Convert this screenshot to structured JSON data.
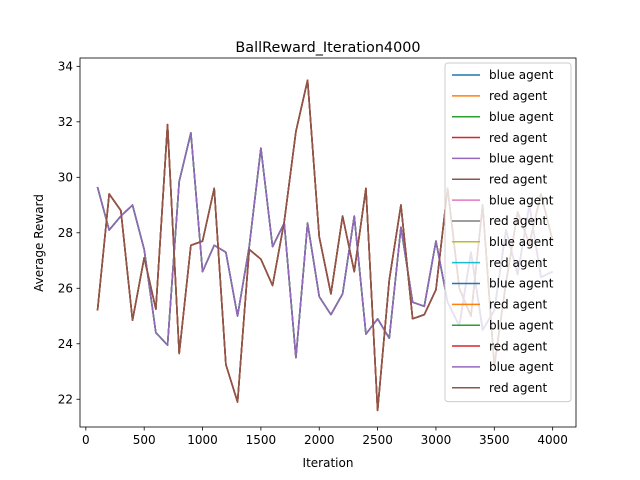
{
  "chart_data": {
    "type": "line",
    "title": "BallReward_Iteration4000",
    "xlabel": "Iteration",
    "ylabel": "Average Reward",
    "xlim": [
      -50,
      4200
    ],
    "ylim": [
      21,
      34.3
    ],
    "xticks": [
      0,
      500,
      1000,
      1500,
      2000,
      2500,
      3000,
      3500,
      4000
    ],
    "yticks": [
      22,
      24,
      26,
      28,
      30,
      32,
      34
    ],
    "grid": false,
    "legend_position": "upper-right",
    "x": [
      100,
      200,
      300,
      400,
      500,
      600,
      700,
      800,
      900,
      1000,
      1100,
      1200,
      1300,
      1400,
      1500,
      1600,
      1700,
      1800,
      1900,
      2000,
      2100,
      2200,
      2300,
      2400,
      2500,
      2600,
      2700,
      2800,
      2900,
      3000,
      3100,
      3200,
      3300,
      3400,
      3500,
      3600,
      3700,
      3800,
      3900,
      4000
    ],
    "series": [
      {
        "name": "blue agent",
        "color": "#1f77b4",
        "values": [
          29.65,
          28.1,
          28.6,
          29.0,
          27.4,
          24.4,
          23.95,
          29.85,
          31.6,
          26.6,
          27.55,
          27.3,
          25.0,
          27.5,
          31.05,
          27.5,
          28.35,
          23.5,
          28.35,
          25.7,
          25.05,
          25.8,
          28.6,
          24.35,
          24.9,
          24.2,
          28.2,
          25.5,
          25.35,
          27.7,
          25.5,
          24.65,
          27.3,
          24.5,
          25.2,
          28.1,
          26.5,
          29.0,
          26.4,
          26.6
        ]
      },
      {
        "name": "red agent",
        "color": "#ff7f0e",
        "values": [
          25.2,
          29.4,
          28.8,
          24.85,
          27.1,
          25.25,
          31.9,
          23.65,
          27.55,
          27.7,
          29.6,
          23.25,
          21.9,
          27.4,
          27.05,
          26.1,
          28.4,
          31.65,
          33.5,
          27.85,
          25.8,
          28.6,
          26.6,
          29.6,
          21.6,
          26.3,
          29.0,
          24.9,
          25.05,
          25.95,
          29.6,
          26.0,
          25.0,
          29.0,
          23.2,
          26.2,
          28.75,
          27.6,
          29.4,
          27.7
        ]
      },
      {
        "name": "blue agent",
        "color": "#2ca02c",
        "values": [
          29.65,
          28.1,
          28.6,
          29.0,
          27.4,
          24.4,
          23.95,
          29.85,
          31.6,
          26.6,
          27.55,
          27.3,
          25.0,
          27.5,
          31.05,
          27.5,
          28.35,
          23.5,
          28.35,
          25.7,
          25.05,
          25.8,
          28.6,
          24.35,
          24.9,
          24.2,
          28.2,
          25.5,
          25.35,
          27.7,
          25.5,
          24.65,
          27.3,
          24.5,
          25.2,
          28.1,
          26.5,
          29.0,
          26.4,
          26.6
        ]
      },
      {
        "name": "red agent",
        "color": "#d62728",
        "values": [
          25.2,
          29.4,
          28.8,
          24.85,
          27.1,
          25.25,
          31.9,
          23.65,
          27.55,
          27.7,
          29.6,
          23.25,
          21.9,
          27.4,
          27.05,
          26.1,
          28.4,
          31.65,
          33.5,
          27.85,
          25.8,
          28.6,
          26.6,
          29.6,
          21.6,
          26.3,
          29.0,
          24.9,
          25.05,
          25.95,
          29.6,
          26.0,
          25.0,
          29.0,
          23.2,
          26.2,
          28.75,
          27.6,
          29.4,
          27.7
        ]
      },
      {
        "name": "blue agent",
        "color": "#9467bd",
        "values": [
          29.65,
          28.1,
          28.6,
          29.0,
          27.4,
          24.4,
          23.95,
          29.85,
          31.6,
          26.6,
          27.55,
          27.3,
          25.0,
          27.5,
          31.05,
          27.5,
          28.35,
          23.5,
          28.35,
          25.7,
          25.05,
          25.8,
          28.6,
          24.35,
          24.9,
          24.2,
          28.2,
          25.5,
          25.35,
          27.7,
          25.5,
          24.65,
          27.3,
          24.5,
          25.2,
          28.1,
          26.5,
          29.0,
          26.4,
          26.6
        ]
      },
      {
        "name": "red agent",
        "color": "#8c564b",
        "values": [
          25.2,
          29.4,
          28.8,
          24.85,
          27.1,
          25.25,
          31.9,
          23.65,
          27.55,
          27.7,
          29.6,
          23.25,
          21.9,
          27.4,
          27.05,
          26.1,
          28.4,
          31.65,
          33.5,
          27.85,
          25.8,
          28.6,
          26.6,
          29.6,
          21.6,
          26.3,
          29.0,
          24.9,
          25.05,
          25.95,
          29.6,
          26.0,
          25.0,
          29.0,
          23.2,
          26.2,
          28.75,
          27.6,
          29.4,
          27.7
        ]
      },
      {
        "name": "blue agent",
        "color": "#e377c2",
        "values": [
          29.65,
          28.1,
          28.6,
          29.0,
          27.4,
          24.4,
          23.95,
          29.85,
          31.6,
          26.6,
          27.55,
          27.3,
          25.0,
          27.5,
          31.05,
          27.5,
          28.35,
          23.5,
          28.35,
          25.7,
          25.05,
          25.8,
          28.6,
          24.35,
          24.9,
          24.2,
          28.2,
          25.5,
          25.35,
          27.7,
          25.5,
          24.65,
          27.3,
          24.5,
          25.2,
          28.1,
          26.5,
          29.0,
          26.4,
          26.6
        ]
      },
      {
        "name": "red agent",
        "color": "#7f7f7f",
        "values": [
          25.2,
          29.4,
          28.8,
          24.85,
          27.1,
          25.25,
          31.9,
          23.65,
          27.55,
          27.7,
          29.6,
          23.25,
          21.9,
          27.4,
          27.05,
          26.1,
          28.4,
          31.65,
          33.5,
          27.85,
          25.8,
          28.6,
          26.6,
          29.6,
          21.6,
          26.3,
          29.0,
          24.9,
          25.05,
          25.95,
          29.6,
          26.0,
          25.0,
          29.0,
          23.2,
          26.2,
          28.75,
          27.6,
          29.4,
          27.7
        ]
      },
      {
        "name": "blue agent",
        "color": "#bcbd22",
        "values": [
          29.65,
          28.1,
          28.6,
          29.0,
          27.4,
          24.4,
          23.95,
          29.85,
          31.6,
          26.6,
          27.55,
          27.3,
          25.0,
          27.5,
          31.05,
          27.5,
          28.35,
          23.5,
          28.35,
          25.7,
          25.05,
          25.8,
          28.6,
          24.35,
          24.9,
          24.2,
          28.2,
          25.5,
          25.35,
          27.7,
          25.5,
          24.65,
          27.3,
          24.5,
          25.2,
          28.1,
          26.5,
          29.0,
          26.4,
          26.6
        ]
      },
      {
        "name": "red agent",
        "color": "#17becf",
        "values": [
          25.2,
          29.4,
          28.8,
          24.85,
          27.1,
          25.25,
          31.9,
          23.65,
          27.55,
          27.7,
          29.6,
          23.25,
          21.9,
          27.4,
          27.05,
          26.1,
          28.4,
          31.65,
          33.5,
          27.85,
          25.8,
          28.6,
          26.6,
          29.6,
          21.6,
          26.3,
          29.0,
          24.9,
          25.05,
          25.95,
          29.6,
          26.0,
          25.0,
          29.0,
          23.2,
          26.2,
          28.75,
          27.6,
          29.4,
          27.7
        ]
      },
      {
        "name": "blue agent",
        "color": "#1f77b4",
        "values": [
          29.65,
          28.1,
          28.6,
          29.0,
          27.4,
          24.4,
          23.95,
          29.85,
          31.6,
          26.6,
          27.55,
          27.3,
          25.0,
          27.5,
          31.05,
          27.5,
          28.35,
          23.5,
          28.35,
          25.7,
          25.05,
          25.8,
          28.6,
          24.35,
          24.9,
          24.2,
          28.2,
          25.5,
          25.35,
          27.7,
          25.5,
          24.65,
          27.3,
          24.5,
          25.2,
          28.1,
          26.5,
          29.0,
          26.4,
          26.6
        ]
      },
      {
        "name": "red agent",
        "color": "#ff7f0e",
        "values": [
          25.2,
          29.4,
          28.8,
          24.85,
          27.1,
          25.25,
          31.9,
          23.65,
          27.55,
          27.7,
          29.6,
          23.25,
          21.9,
          27.4,
          27.05,
          26.1,
          28.4,
          31.65,
          33.5,
          27.85,
          25.8,
          28.6,
          26.6,
          29.6,
          21.6,
          26.3,
          29.0,
          24.9,
          25.05,
          25.95,
          29.6,
          26.0,
          25.0,
          29.0,
          23.2,
          26.2,
          28.75,
          27.6,
          29.4,
          27.7
        ]
      },
      {
        "name": "blue agent",
        "color": "#2ca02c",
        "values": [
          29.65,
          28.1,
          28.6,
          29.0,
          27.4,
          24.4,
          23.95,
          29.85,
          31.6,
          26.6,
          27.55,
          27.3,
          25.0,
          27.5,
          31.05,
          27.5,
          28.35,
          23.5,
          28.35,
          25.7,
          25.05,
          25.8,
          28.6,
          24.35,
          24.9,
          24.2,
          28.2,
          25.5,
          25.35,
          27.7,
          25.5,
          24.65,
          27.3,
          24.5,
          25.2,
          28.1,
          26.5,
          29.0,
          26.4,
          26.6
        ]
      },
      {
        "name": "red agent",
        "color": "#d62728",
        "values": [
          25.2,
          29.4,
          28.8,
          24.85,
          27.1,
          25.25,
          31.9,
          23.65,
          27.55,
          27.7,
          29.6,
          23.25,
          21.9,
          27.4,
          27.05,
          26.1,
          28.4,
          31.65,
          33.5,
          27.85,
          25.8,
          28.6,
          26.6,
          29.6,
          21.6,
          26.3,
          29.0,
          24.9,
          25.05,
          25.95,
          29.6,
          26.0,
          25.0,
          29.0,
          23.2,
          26.2,
          28.75,
          27.6,
          29.4,
          27.7
        ]
      },
      {
        "name": "blue agent",
        "color": "#9467bd",
        "values": [
          29.65,
          28.1,
          28.6,
          29.0,
          27.4,
          24.4,
          23.95,
          29.85,
          31.6,
          26.6,
          27.55,
          27.3,
          25.0,
          27.5,
          31.05,
          27.5,
          28.35,
          23.5,
          28.35,
          25.7,
          25.05,
          25.8,
          28.6,
          24.35,
          24.9,
          24.2,
          28.2,
          25.5,
          25.35,
          27.7,
          25.5,
          24.65,
          27.3,
          24.5,
          25.2,
          28.1,
          26.5,
          29.0,
          26.4,
          26.6
        ]
      },
      {
        "name": "red agent",
        "color": "#8c564b",
        "values": [
          25.2,
          29.4,
          28.8,
          24.85,
          27.1,
          25.25,
          31.9,
          23.65,
          27.55,
          27.7,
          29.6,
          23.25,
          21.9,
          27.4,
          27.05,
          26.1,
          28.4,
          31.65,
          33.5,
          27.85,
          25.8,
          28.6,
          26.6,
          29.6,
          21.6,
          26.3,
          29.0,
          24.9,
          25.05,
          25.95,
          29.6,
          26.0,
          25.0,
          29.0,
          23.2,
          26.2,
          28.75,
          27.6,
          29.4,
          27.7
        ]
      }
    ]
  }
}
